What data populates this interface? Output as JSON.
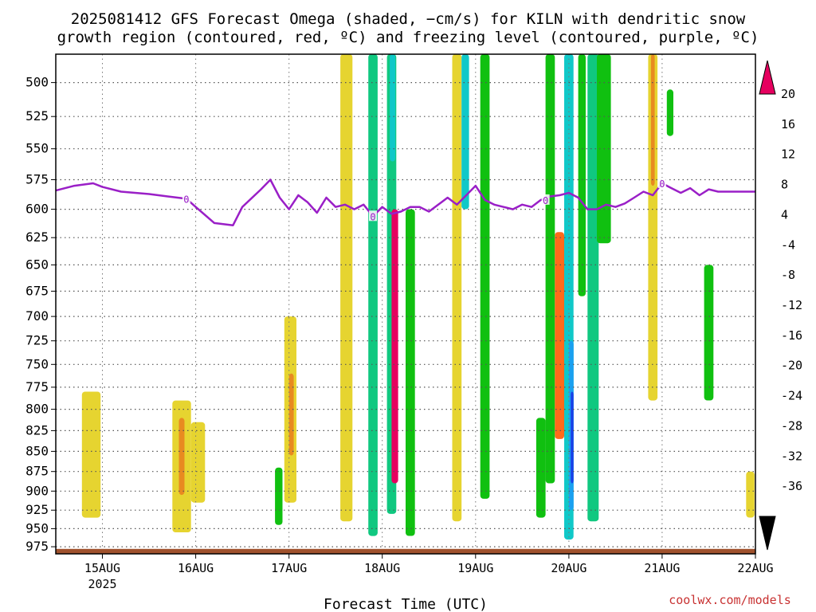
{
  "title": {
    "line1": "2025081412 GFS Forecast Omega (shaded, −cm/s) for KILN with dendritic snow",
    "line2": "growth region (contoured, red, ºC) and freezing level (contoured, purple, ºC)"
  },
  "xlabel": "Forecast Time (UTC)",
  "credit": "coolwx.com/models",
  "colors": {
    "freezing_line": "#9a1fc7",
    "terrain": "#a0522d",
    "grid": "#555555"
  },
  "chart_data": {
    "type": "heatmap",
    "variable": "omega",
    "units": "-cm/s",
    "site": "KILN",
    "model": "GFS",
    "init": "2025081412",
    "y_axis": {
      "label": "",
      "ticks": [
        500,
        525,
        550,
        575,
        600,
        625,
        650,
        675,
        700,
        725,
        750,
        775,
        800,
        825,
        850,
        875,
        900,
        925,
        950,
        975
      ],
      "range": [
        480,
        985
      ],
      "scale": "log-pressure"
    },
    "x_axis": {
      "label": "Forecast Time (UTC)",
      "ticks": [
        "15AUG",
        "16AUG",
        "17AUG",
        "18AUG",
        "19AUG",
        "20AUG",
        "21AUG",
        "22AUG"
      ],
      "year_label": "2025",
      "range_days": [
        -0.5,
        7.0
      ]
    },
    "colorbar": {
      "levels": [
        "20",
        "16",
        "12",
        "8",
        "4",
        "-4",
        "-8",
        "-12",
        "-16",
        "-20",
        "-24",
        "-28",
        "-32",
        "-36"
      ],
      "colors": [
        "#e6005f",
        "#ff3030",
        "#ff6a1a",
        "#e88a20",
        "#e8b430",
        "#e6d430",
        "#ffffff",
        "#10c010",
        "#10c880",
        "#10c8c8",
        "#1aa0f0",
        "#1a40e8",
        "#5a1ae0",
        "#9a10c8",
        "#a0a0a0",
        "#000000"
      ]
    },
    "freezing_level": {
      "contour_label": "0",
      "x": [
        -0.5,
        -0.3,
        -0.1,
        0.0,
        0.2,
        0.5,
        0.7,
        0.9,
        1.0,
        1.2,
        1.4,
        1.5,
        1.7,
        1.8,
        1.9,
        2.0,
        2.1,
        2.2,
        2.3,
        2.4,
        2.5,
        2.6,
        2.7,
        2.8,
        2.9,
        3.0,
        3.1,
        3.2,
        3.3,
        3.4,
        3.5,
        3.6,
        3.7,
        3.8,
        3.9,
        4.0,
        4.1,
        4.2,
        4.3,
        4.4,
        4.5,
        4.6,
        4.7,
        4.8,
        4.9,
        5.0,
        5.1,
        5.2,
        5.3,
        5.4,
        5.5,
        5.6,
        5.7,
        5.8,
        5.9,
        6.0,
        6.1,
        6.2,
        6.3,
        6.4,
        6.5,
        6.6,
        6.8,
        7.0
      ],
      "p": [
        584,
        580,
        578,
        581,
        585,
        587,
        589,
        591,
        598,
        612,
        614,
        598,
        583,
        575,
        590,
        600,
        588,
        594,
        603,
        590,
        598,
        596,
        600,
        596,
        606,
        598,
        604,
        602,
        598,
        598,
        602,
        596,
        590,
        596,
        588,
        580,
        592,
        596,
        598,
        600,
        596,
        598,
        592,
        589,
        588,
        586,
        590,
        600,
        600,
        596,
        598,
        595,
        590,
        585,
        588,
        578,
        582,
        586,
        582,
        588,
        583,
        585,
        585,
        585
      ]
    },
    "terrain_pressure": 978,
    "omega_cells": [
      {
        "t0": -0.22,
        "t1": -0.02,
        "p0": 780,
        "p1": 935,
        "v": 6
      },
      {
        "t0": 0.75,
        "t1": 0.95,
        "p0": 790,
        "p1": 955,
        "v": 6
      },
      {
        "t0": 0.82,
        "t1": 0.88,
        "p0": 810,
        "p1": 905,
        "v": 10
      },
      {
        "t0": 0.95,
        "t1": 1.1,
        "p0": 815,
        "p1": 915,
        "v": 5
      },
      {
        "t0": 1.85,
        "t1": 1.93,
        "p0": 870,
        "p1": 945,
        "v": -6
      },
      {
        "t0": 1.95,
        "t1": 2.08,
        "p0": 700,
        "p1": 915,
        "v": 6
      },
      {
        "t0": 2.0,
        "t1": 2.05,
        "p0": 760,
        "p1": 855,
        "v": 10
      },
      {
        "t0": 2.55,
        "t1": 2.68,
        "p0": 480,
        "p1": 940,
        "v": 6
      },
      {
        "t0": 2.85,
        "t1": 2.95,
        "p0": 480,
        "p1": 960,
        "v": -10
      },
      {
        "t0": 3.05,
        "t1": 3.15,
        "p0": 480,
        "p1": 930,
        "v": -8
      },
      {
        "t0": 3.08,
        "t1": 3.14,
        "p0": 480,
        "p1": 560,
        "v": -14
      },
      {
        "t0": 3.1,
        "t1": 3.17,
        "p0": 600,
        "p1": 890,
        "v": 22
      },
      {
        "t0": 3.25,
        "t1": 3.35,
        "p0": 600,
        "p1": 960,
        "v": -7
      },
      {
        "t0": 3.75,
        "t1": 3.85,
        "p0": 480,
        "p1": 940,
        "v": 6
      },
      {
        "t0": 3.85,
        "t1": 3.93,
        "p0": 480,
        "p1": 600,
        "v": -12
      },
      {
        "t0": 4.05,
        "t1": 4.15,
        "p0": 480,
        "p1": 910,
        "v": -7
      },
      {
        "t0": 4.65,
        "t1": 4.75,
        "p0": 810,
        "p1": 935,
        "v": -7
      },
      {
        "t0": 4.75,
        "t1": 4.85,
        "p0": 480,
        "p1": 890,
        "v": -7
      },
      {
        "t0": 4.85,
        "t1": 4.95,
        "p0": 620,
        "p1": 835,
        "v": 14
      },
      {
        "t0": 4.95,
        "t1": 5.05,
        "p0": 480,
        "p1": 965,
        "v": -12
      },
      {
        "t0": 5.0,
        "t1": 5.05,
        "p0": 725,
        "p1": 925,
        "v": -18
      },
      {
        "t0": 5.02,
        "t1": 5.05,
        "p0": 780,
        "p1": 890,
        "v": -22
      },
      {
        "t0": 5.1,
        "t1": 5.18,
        "p0": 480,
        "p1": 680,
        "v": -7
      },
      {
        "t0": 5.2,
        "t1": 5.32,
        "p0": 480,
        "p1": 940,
        "v": -10
      },
      {
        "t0": 5.3,
        "t1": 5.45,
        "p0": 480,
        "p1": 630,
        "v": -6
      },
      {
        "t0": 5.85,
        "t1": 5.95,
        "p0": 480,
        "p1": 790,
        "v": 6
      },
      {
        "t0": 5.88,
        "t1": 5.92,
        "p0": 480,
        "p1": 580,
        "v": 10
      },
      {
        "t0": 6.05,
        "t1": 6.12,
        "p0": 505,
        "p1": 540,
        "v": -6
      },
      {
        "t0": 6.45,
        "t1": 6.55,
        "p0": 650,
        "p1": 790,
        "v": -6
      },
      {
        "t0": 6.9,
        "t1": 6.99,
        "p0": 875,
        "p1": 935,
        "v": 6
      }
    ]
  }
}
